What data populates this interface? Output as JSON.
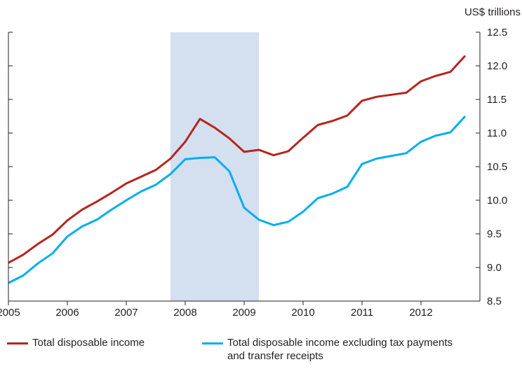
{
  "chart_data": {
    "type": "line",
    "unit_label": "US$ trillions",
    "xlabel": "",
    "ylabel": "",
    "xlim": [
      2005.0,
      2013.0
    ],
    "ylim": [
      8.5,
      12.5
    ],
    "y_ticks": [
      8.5,
      9.0,
      9.5,
      10.0,
      10.5,
      11.0,
      11.5,
      12.0,
      12.5
    ],
    "y_tick_labels": [
      "8.5",
      "9.0",
      "9.5",
      "10.0",
      "10.5",
      "11.0",
      "11.5",
      "12.0",
      "12.5"
    ],
    "x_tick_labels": [
      "2005",
      "2006",
      "2007",
      "2008",
      "2009",
      "2010",
      "2011",
      "2012"
    ],
    "x_ticks": [
      2005,
      2006,
      2007,
      2008,
      2009,
      2010,
      2011,
      2012
    ],
    "y_axis_side": "right",
    "grid": false,
    "legend_position": "bottom",
    "recession_shading": {
      "start": 2007.75,
      "end": 2009.25,
      "color": "#d4dff0"
    },
    "x": [
      2005.0,
      2005.25,
      2005.5,
      2005.75,
      2006.0,
      2006.25,
      2006.5,
      2006.75,
      2007.0,
      2007.25,
      2007.5,
      2007.75,
      2008.0,
      2008.25,
      2008.5,
      2008.75,
      2009.0,
      2009.25,
      2009.5,
      2009.75,
      2010.0,
      2010.25,
      2010.5,
      2010.75,
      2011.0,
      2011.25,
      2011.5,
      2011.75,
      2012.0,
      2012.25,
      2012.5,
      2012.75
    ],
    "series": [
      {
        "name": "Total disposable income",
        "color": "#b5261e",
        "values": [
          9.07,
          9.19,
          9.35,
          9.49,
          9.7,
          9.86,
          9.98,
          10.11,
          10.25,
          10.35,
          10.45,
          10.62,
          10.87,
          11.21,
          11.08,
          10.92,
          10.72,
          10.75,
          10.67,
          10.73,
          10.93,
          11.12,
          11.18,
          11.26,
          11.48,
          11.54,
          11.57,
          11.6,
          11.77,
          11.85,
          11.91,
          12.15
        ]
      },
      {
        "name": "Total disposable income excluding tax payments\nand transfer receipts",
        "color": "#00aeef",
        "values": [
          8.77,
          8.88,
          9.06,
          9.21,
          9.46,
          9.61,
          9.71,
          9.86,
          10.0,
          10.13,
          10.23,
          10.39,
          10.61,
          10.63,
          10.64,
          10.43,
          9.89,
          9.71,
          9.63,
          9.68,
          9.83,
          10.03,
          10.1,
          10.2,
          10.54,
          10.62,
          10.66,
          10.7,
          10.87,
          10.96,
          11.01,
          11.25
        ]
      }
    ]
  }
}
